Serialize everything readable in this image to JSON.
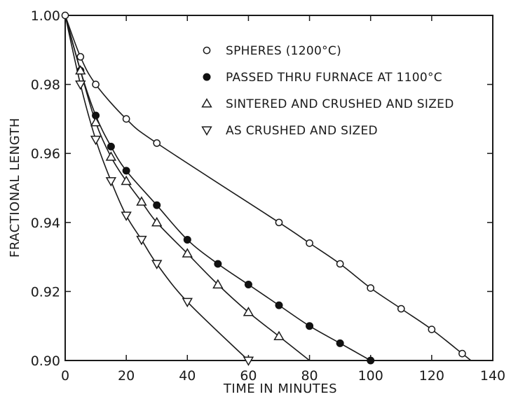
{
  "chart_data": {
    "type": "scatter",
    "title": "",
    "xlabel": "TIME IN MINUTES",
    "ylabel": "FRACTIONAL LENGTH",
    "xlim": [
      0,
      140
    ],
    "ylim": [
      0.9,
      1.0
    ],
    "x_ticks": [
      "0",
      "20",
      "40",
      "60",
      "80",
      "100",
      "120",
      "140"
    ],
    "y_ticks": [
      "0.90",
      "0.92",
      "0.94",
      "0.96",
      "0.98",
      "1.00"
    ],
    "grid": false,
    "legend_position": "top-right",
    "series": [
      {
        "name": "SPHERES (1200°C)",
        "marker": "open-circle",
        "x": [
          0,
          5,
          10,
          20,
          30,
          70,
          80,
          90,
          100,
          110,
          120,
          130
        ],
        "y": [
          1.0,
          0.988,
          0.98,
          0.97,
          0.963,
          0.94,
          0.934,
          0.928,
          0.921,
          0.915,
          0.909,
          0.902
        ]
      },
      {
        "name": "PASSED THRU FURNACE AT 1100°C",
        "marker": "filled-circle",
        "x": [
          5,
          10,
          15,
          20,
          30,
          40,
          50,
          60,
          70,
          80,
          90,
          100
        ],
        "y": [
          0.984,
          0.971,
          0.962,
          0.955,
          0.945,
          0.935,
          0.928,
          0.922,
          0.916,
          0.91,
          0.905,
          0.9
        ]
      },
      {
        "name": "SINTERED AND CRUSHED AND SIZED",
        "marker": "triangle-up",
        "x": [
          5,
          10,
          15,
          20,
          25,
          30,
          40,
          50,
          60,
          70
        ],
        "y": [
          0.984,
          0.969,
          0.959,
          0.952,
          0.946,
          0.94,
          0.931,
          0.922,
          0.914,
          0.907
        ]
      },
      {
        "name": "AS CRUSHED AND SIZED",
        "marker": "triangle-down",
        "x": [
          5,
          10,
          15,
          20,
          25,
          30,
          40,
          60
        ],
        "y": [
          0.98,
          0.964,
          0.952,
          0.942,
          0.935,
          0.928,
          0.917,
          0.9
        ]
      }
    ]
  }
}
